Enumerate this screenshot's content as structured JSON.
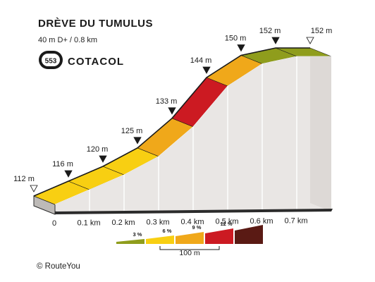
{
  "title": "DRÈVE DU TUMULUS",
  "subtitle": "40 m D+ / 0.8 km",
  "badge": {
    "number": "553",
    "brand": "COTACOL"
  },
  "credit": "©  RouteYou",
  "chart_data": {
    "type": "area",
    "x": [
      0,
      0.1,
      0.2,
      0.3,
      0.4,
      0.5,
      0.6,
      0.7,
      0.8
    ],
    "elevation": [
      112,
      116,
      120,
      125,
      133,
      144,
      150,
      152,
      152
    ],
    "xlim": [
      0,
      0.8
    ],
    "x_tick_labels": [
      "0",
      "0.1 km",
      "0.2 km",
      "0.3 km",
      "0.4 km",
      "0.5 km",
      "0.6 km",
      "0.7 km"
    ],
    "elevation_labels": [
      {
        "x": 0,
        "label": "112 m",
        "marker": "start"
      },
      {
        "x": 0.1,
        "label": "116 m",
        "marker": "point"
      },
      {
        "x": 0.2,
        "label": "120 m",
        "marker": "point"
      },
      {
        "x": 0.3,
        "label": "125 m",
        "marker": "point"
      },
      {
        "x": 0.4,
        "label": "133 m",
        "marker": "point"
      },
      {
        "x": 0.5,
        "label": "144 m",
        "marker": "point"
      },
      {
        "x": 0.6,
        "label": "150 m",
        "marker": "point"
      },
      {
        "x": 0.7,
        "label": "152 m",
        "marker": "point"
      },
      {
        "x": 0.8,
        "label": "152 m",
        "marker": "end"
      }
    ],
    "segment_colors": [
      "#f8cf12",
      "#f8cf12",
      "#f8cf12",
      "#f0a81a",
      "#cc1a22",
      "#f0a81a",
      "#8f9d1c",
      "#8f9d1c"
    ],
    "legend": {
      "items": [
        {
          "label": "3 %",
          "color": "#8f9d1c"
        },
        {
          "label": "6 %",
          "color": "#f8cf12"
        },
        {
          "label": "9 %",
          "color": "#f0a81a"
        },
        {
          "label": "12 %",
          "color": "#cc1a22"
        },
        {
          "label": "",
          "color": "#5a1a14"
        }
      ],
      "scale_label": "100 m"
    }
  }
}
